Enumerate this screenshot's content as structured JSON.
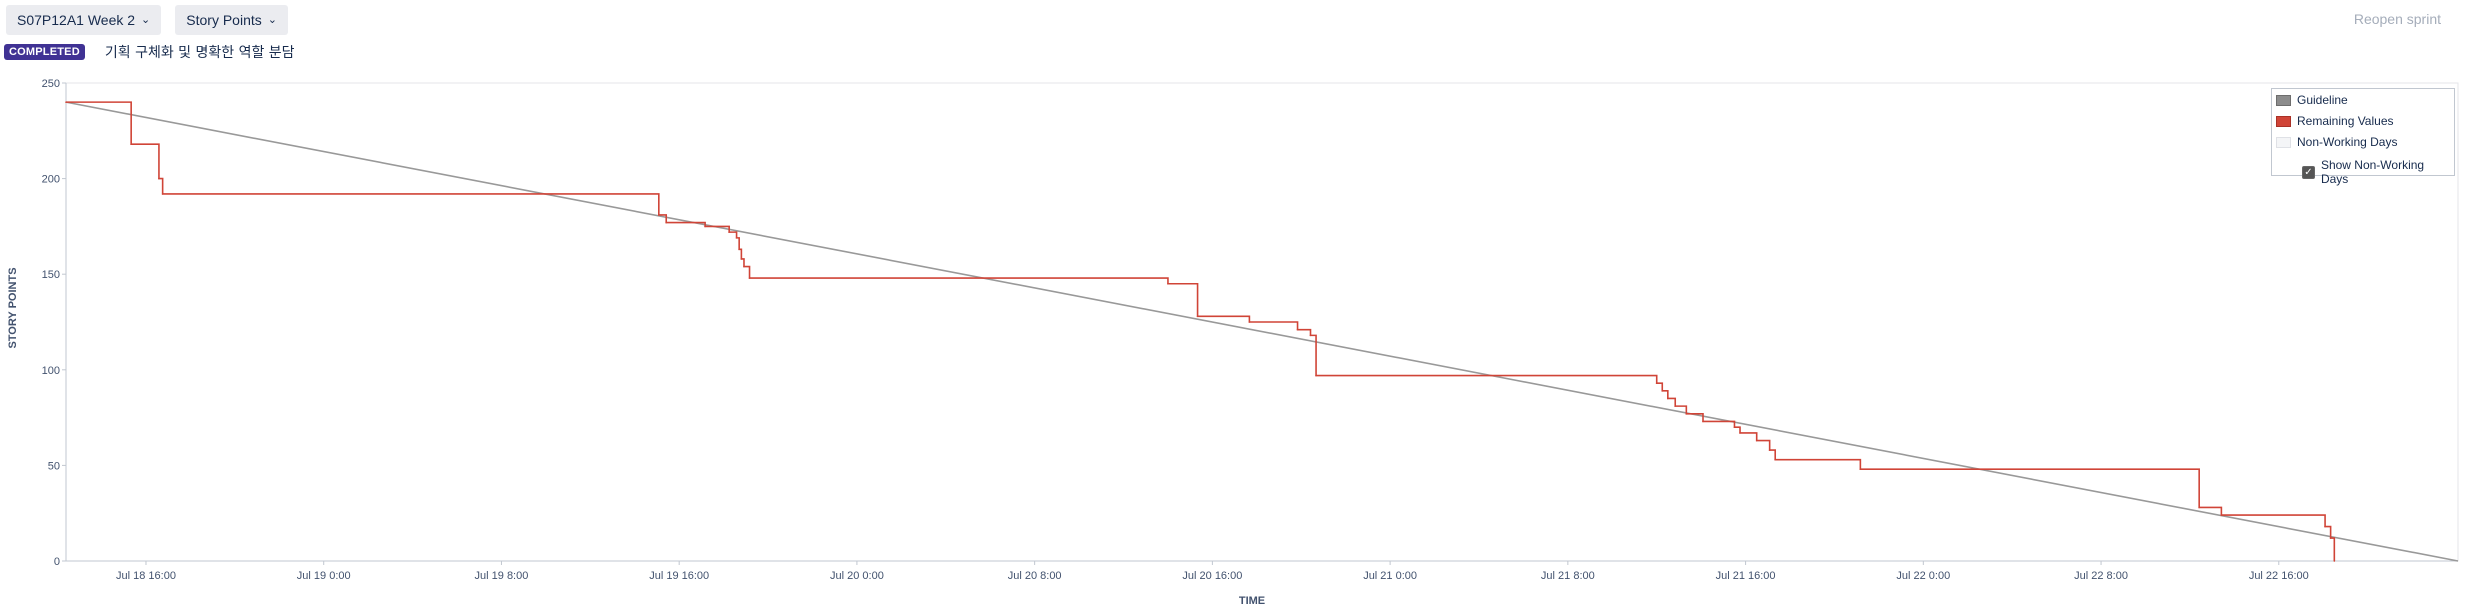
{
  "toolbar": {
    "sprint_select": "S07P12A1 Week 2",
    "stat_select": "Story Points",
    "reopen": "Reopen sprint"
  },
  "status": {
    "badge": "COMPLETED",
    "goal": "기획 구체화 및 명확한 역할 분담"
  },
  "legend": {
    "guideline": "Guideline",
    "remaining": "Remaining Values",
    "non_working": "Non-Working Days",
    "show_non_working": "Show Non-Working Days",
    "show_non_working_checked": true
  },
  "colors": {
    "guideline": "#999999",
    "remaining": "#d04437",
    "badge": "#403294"
  },
  "chart_data": {
    "type": "line",
    "xlabel": "TIME",
    "ylabel": "STORY POINTS",
    "ylim": [
      0,
      250
    ],
    "yticks": [
      0,
      50,
      100,
      150,
      200,
      250
    ],
    "xlim": [
      "Jul 18 12:24",
      "Jul 23 0:04"
    ],
    "xticks": [
      "Jul 18 16:00",
      "Jul 19 0:00",
      "Jul 19 8:00",
      "Jul 19 16:00",
      "Jul 20 0:00",
      "Jul 20 8:00",
      "Jul 20 16:00",
      "Jul 21 0:00",
      "Jul 21 8:00",
      "Jul 21 16:00",
      "Jul 22 0:00",
      "Jul 22 8:00",
      "Jul 22 16:00"
    ],
    "grid": false,
    "legend_position": "top-right",
    "series": [
      {
        "name": "Guideline",
        "step": false,
        "points": [
          [
            "Jul 18 12:24",
            240
          ],
          [
            "Jul 23 0:04",
            0
          ]
        ]
      },
      {
        "name": "Remaining Values",
        "step": true,
        "points": [
          [
            "Jul 18 12:24",
            240
          ],
          [
            "Jul 18 15:20",
            218
          ],
          [
            "Jul 18 16:35",
            200
          ],
          [
            "Jul 18 16:45",
            192
          ],
          [
            "Jul 19 15:05",
            181
          ],
          [
            "Jul 19 15:25",
            177
          ],
          [
            "Jul 19 17:10",
            175
          ],
          [
            "Jul 19 18:15",
            172
          ],
          [
            "Jul 19 18:35",
            169
          ],
          [
            "Jul 19 18:42",
            163
          ],
          [
            "Jul 19 18:48",
            158
          ],
          [
            "Jul 19 18:55",
            154
          ],
          [
            "Jul 19 19:10",
            148
          ],
          [
            "Jul 20 14:00",
            145
          ],
          [
            "Jul 20 15:20",
            128
          ],
          [
            "Jul 20 17:40",
            125
          ],
          [
            "Jul 20 19:50",
            121
          ],
          [
            "Jul 20 20:25",
            118
          ],
          [
            "Jul 20 20:40",
            97
          ],
          [
            "Jul 21 12:00",
            93
          ],
          [
            "Jul 21 12:15",
            89
          ],
          [
            "Jul 21 12:30",
            85
          ],
          [
            "Jul 21 12:50",
            81
          ],
          [
            "Jul 21 13:20",
            77
          ],
          [
            "Jul 21 14:05",
            73
          ],
          [
            "Jul 21 15:30",
            70
          ],
          [
            "Jul 21 15:45",
            67
          ],
          [
            "Jul 21 16:30",
            63
          ],
          [
            "Jul 21 17:05",
            58
          ],
          [
            "Jul 21 17:20",
            53
          ],
          [
            "Jul 21 21:10",
            48
          ],
          [
            "Jul 22 12:25",
            28
          ],
          [
            "Jul 22 13:25",
            24
          ],
          [
            "Jul 22 18:05",
            18
          ],
          [
            "Jul 22 18:20",
            12
          ],
          [
            "Jul 22 18:30",
            0
          ]
        ]
      }
    ]
  }
}
